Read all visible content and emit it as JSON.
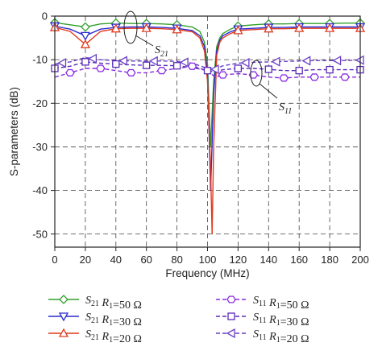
{
  "chart_data": {
    "type": "line",
    "xlabel": "Frequency (MHz)",
    "ylabel": "S-parameters (dB)",
    "xlim": [
      0,
      200
    ],
    "ylim": [
      -53,
      0
    ],
    "x_ticks": [
      0,
      20,
      40,
      60,
      80,
      100,
      120,
      140,
      160,
      180,
      200
    ],
    "y_ticks": [
      0,
      -10,
      -20,
      -30,
      -40,
      -50
    ],
    "grid": true,
    "legend_position": "bottom",
    "annotations": [
      {
        "text": "S21",
        "sub_base": "S",
        "sub": "21",
        "points_to": "S21 curves"
      },
      {
        "text": "S11",
        "sub_base": "S",
        "sub": "11",
        "points_to": "S11 curves"
      }
    ],
    "series": [
      {
        "name": "S21 R1=50 Ω",
        "param": "S",
        "param_sub": "21",
        "r_label": "R",
        "r_sub": "1",
        "r_value": "=50 Ω",
        "color": "#33a02c",
        "marker": "diamond",
        "dash": "solid",
        "x": [
          0,
          10,
          20,
          30,
          40,
          50,
          60,
          70,
          80,
          90,
          95,
          98,
          100,
          102,
          104,
          106,
          108,
          110,
          115,
          120,
          130,
          140,
          150,
          160,
          170,
          180,
          190,
          200
        ],
        "y": [
          -1.5,
          -2,
          -2.5,
          -1.8,
          -1.6,
          -1.7,
          -1.7,
          -1.8,
          -2,
          -2.5,
          -3.5,
          -6,
          -11,
          -30,
          -15,
          -7,
          -5,
          -4,
          -3,
          -2.3,
          -2,
          -1.8,
          -1.8,
          -1.7,
          -1.7,
          -1.7,
          -1.6,
          -1.6
        ]
      },
      {
        "name": "S21 R1=30 Ω",
        "param": "S",
        "param_sub": "21",
        "r_label": "R",
        "r_sub": "1",
        "r_value": "=30 Ω",
        "color": "#2b2bd1",
        "marker": "triangle-down",
        "dash": "solid",
        "x": [
          0,
          10,
          20,
          30,
          40,
          50,
          60,
          70,
          80,
          90,
          95,
          98,
          100,
          102,
          104,
          106,
          108,
          110,
          115,
          120,
          130,
          140,
          150,
          160,
          170,
          180,
          190,
          200
        ],
        "y": [
          -2.3,
          -3,
          -4.5,
          -3,
          -2.6,
          -2.5,
          -2.5,
          -2.6,
          -2.8,
          -3.3,
          -4.5,
          -7,
          -13,
          -40,
          -18,
          -8,
          -5.5,
          -4.5,
          -3.6,
          -3,
          -2.8,
          -2.6,
          -2.6,
          -2.5,
          -2.5,
          -2.5,
          -2.5,
          -2.5
        ]
      },
      {
        "name": "S21 R1=20 Ω",
        "param": "S",
        "param_sub": "21",
        "r_label": "R",
        "r_sub": "1",
        "r_value": "=20 Ω",
        "color": "#e23a1e",
        "marker": "triangle-up",
        "dash": "solid",
        "x": [
          0,
          10,
          20,
          30,
          40,
          50,
          60,
          70,
          80,
          90,
          95,
          98,
          100,
          102,
          103,
          104,
          106,
          108,
          110,
          115,
          120,
          130,
          140,
          150,
          160,
          170,
          180,
          190,
          200
        ],
        "y": [
          -2.6,
          -3.5,
          -6.5,
          -3.5,
          -2.9,
          -2.8,
          -2.8,
          -2.9,
          -3.1,
          -3.6,
          -5,
          -8,
          -15,
          -35,
          -50,
          -30,
          -9,
          -6,
          -5,
          -4,
          -3.3,
          -3.1,
          -2.9,
          -2.9,
          -2.8,
          -2.8,
          -2.8,
          -2.8,
          -2.8
        ]
      },
      {
        "name": "S11 R1=50 Ω",
        "param": "S",
        "param_sub": "11",
        "r_label": "R",
        "r_sub": "1",
        "r_value": "=50 Ω",
        "color": "#8a2be2",
        "marker": "hexagon",
        "dash": "dashed",
        "x": [
          0,
          10,
          20,
          30,
          40,
          50,
          60,
          70,
          80,
          90,
          100,
          105,
          110,
          120,
          130,
          140,
          150,
          160,
          170,
          180,
          190,
          200
        ],
        "y": [
          -14,
          -13,
          -12,
          -12,
          -12.5,
          -13,
          -13,
          -12.5,
          -12,
          -11.5,
          -12.5,
          -14,
          -13.5,
          -13.2,
          -13.5,
          -14,
          -14.2,
          -14,
          -14,
          -14,
          -14,
          -14
        ]
      },
      {
        "name": "S11 R1=30 Ω",
        "param": "S",
        "param_sub": "11",
        "r_label": "R",
        "r_sub": "1",
        "r_value": "=30 Ω",
        "color": "#5a2ab8",
        "marker": "square",
        "dash": "dashed",
        "x": [
          0,
          10,
          20,
          30,
          40,
          50,
          60,
          70,
          80,
          90,
          100,
          105,
          110,
          120,
          130,
          140,
          150,
          160,
          170,
          180,
          190,
          200
        ],
        "y": [
          -12,
          -11.5,
          -10.5,
          -10.8,
          -11,
          -11.2,
          -11.3,
          -11.3,
          -11.4,
          -11.8,
          -12.5,
          -12.8,
          -12.3,
          -12,
          -12,
          -12.2,
          -12.5,
          -12.5,
          -12.3,
          -12.3,
          -12.3,
          -12.3
        ]
      },
      {
        "name": "S11 R1=20 Ω",
        "param": "S",
        "param_sub": "11",
        "r_label": "R",
        "r_sub": "1",
        "r_value": "=20 Ω",
        "color": "#6a3fc4",
        "marker": "triangle-left",
        "dash": "dashed",
        "x": [
          0,
          10,
          20,
          30,
          40,
          50,
          60,
          70,
          80,
          90,
          100,
          105,
          110,
          120,
          130,
          140,
          150,
          160,
          170,
          180,
          190,
          200
        ],
        "y": [
          -11,
          -10.5,
          -9.5,
          -10,
          -10.2,
          -10.3,
          -10.3,
          -10.3,
          -10.4,
          -10.8,
          -12,
          -12.2,
          -11.4,
          -10.8,
          -10.6,
          -10.5,
          -10.4,
          -10.3,
          -10.2,
          -10.2,
          -10.2,
          -10.1
        ]
      }
    ]
  }
}
